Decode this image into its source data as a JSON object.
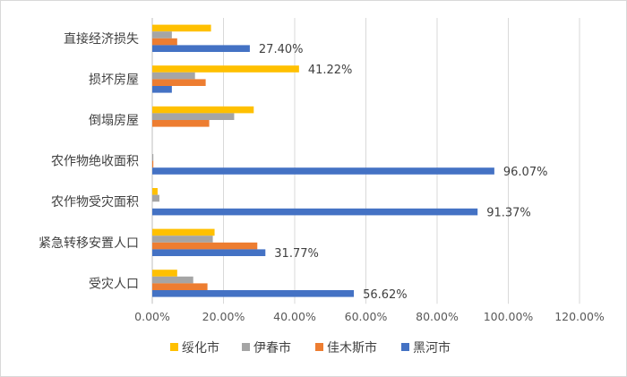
{
  "chart_data": {
    "type": "bar",
    "orientation": "horizontal",
    "title": "",
    "xlabel": "",
    "ylabel": "",
    "xlim": [
      0,
      120
    ],
    "x_ticks": [
      "0.00%",
      "20.00%",
      "40.00%",
      "60.00%",
      "80.00%",
      "100.00%",
      "120.00%"
    ],
    "categories": [
      "直接经济损失",
      "损坏房屋",
      "倒塌房屋",
      "农作物绝收面积",
      "农作物受灾面积",
      "紧急转移安置人口",
      "受灾人口"
    ],
    "series": [
      {
        "name": "绥化市",
        "color": "#ffc000",
        "values": [
          16.5,
          41.22,
          28.5,
          0,
          1.5,
          17.5,
          7.0
        ]
      },
      {
        "name": "伊春市",
        "color": "#a5a5a5",
        "values": [
          5.5,
          12.0,
          23.0,
          0.3,
          2.0,
          17.0,
          11.5
        ]
      },
      {
        "name": "佳木斯市",
        "color": "#ed7d31",
        "values": [
          7.0,
          15.0,
          16.0,
          0.3,
          0,
          29.5,
          15.5
        ]
      },
      {
        "name": "黑河市",
        "color": "#4472c4",
        "values": [
          27.4,
          5.5,
          0,
          96.07,
          91.37,
          31.77,
          56.62
        ]
      }
    ],
    "data_labels": [
      {
        "category": "直接经济损失",
        "series": "黑河市",
        "text": "27.40%"
      },
      {
        "category": "损坏房屋",
        "series": "绥化市",
        "text": "41.22%"
      },
      {
        "category": "农作物绝收面积",
        "series": "黑河市",
        "text": "96.07%"
      },
      {
        "category": "农作物受灾面积",
        "series": "黑河市",
        "text": "91.37%"
      },
      {
        "category": "紧急转移安置人口",
        "series": "黑河市",
        "text": "31.77%"
      },
      {
        "category": "受灾人口",
        "series": "黑河市",
        "text": "56.62%"
      }
    ],
    "grid": true,
    "legend_position": "bottom"
  }
}
